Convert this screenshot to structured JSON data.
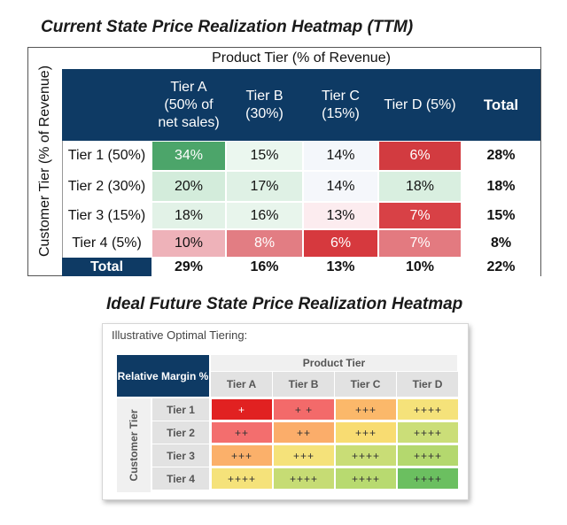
{
  "titles": {
    "current": "Current State Price Realization Heatmap (TTM)",
    "future": "Ideal Future State Price Realization Heatmap"
  },
  "chart_data": [
    {
      "type": "heatmap",
      "title": "Current State Price Realization Heatmap (TTM)",
      "xlabel": "Product Tier (% of Revenue)",
      "ylabel": "Customer Tier (% of Revenue)",
      "columns": [
        "Tier A (50% of net sales)",
        "Tier B (30%)",
        "Tier C (15%)",
        "Tier D (5%)",
        "Total"
      ],
      "rows": [
        "Tier 1 (50%)",
        "Tier 2 (30%)",
        "Tier 3 (15%)",
        "Tier 4 (5%)",
        "Total"
      ],
      "values": [
        [
          "34%",
          "15%",
          "14%",
          "6%",
          "28%"
        ],
        [
          "20%",
          "17%",
          "14%",
          "18%",
          "18%"
        ],
        [
          "18%",
          "16%",
          "13%",
          "7%",
          "15%"
        ],
        [
          "10%",
          "8%",
          "6%",
          "7%",
          "8%"
        ],
        [
          "29%",
          "16%",
          "13%",
          "10%",
          "22%"
        ]
      ],
      "colors": [
        [
          "#4ca56a",
          "#ebf7ef",
          "#f4f7fb",
          "#d23b40"
        ],
        [
          "#d3ecdb",
          "#dff1e5",
          "#f5f7fb",
          "#d9efe0"
        ],
        [
          "#e2f2e7",
          "#e8f5ec",
          "#fcecef",
          "#d84146"
        ],
        [
          "#eeb2b9",
          "#e27d83",
          "#d6393e",
          "#e37a80"
        ]
      ]
    },
    {
      "type": "heatmap",
      "title": "Ideal Future State Price Realization Heatmap",
      "subtitle": "Illustrative Optimal Tiering:",
      "corner_label": "Relative Margin %",
      "xlabel": "Product Tier",
      "ylabel": "Customer Tier",
      "columns": [
        "Tier A",
        "Tier B",
        "Tier C",
        "Tier D"
      ],
      "rows": [
        "Tier 1",
        "Tier 2",
        "Tier 3",
        "Tier 4"
      ],
      "values": [
        [
          "+",
          "+ +",
          "+++",
          "++++"
        ],
        [
          "++",
          "++",
          "+++",
          "++++"
        ],
        [
          "+++",
          "+++",
          "++++",
          "++++"
        ],
        [
          "++++",
          "++++",
          "++++",
          "++++"
        ]
      ],
      "colors": [
        [
          "#e12121",
          "#f36a6a",
          "#fbb86a",
          "#f5e27a"
        ],
        [
          "#f36e6e",
          "#fbad6a",
          "#f8dc72",
          "#cbde78"
        ],
        [
          "#fbb06a",
          "#f5e27a",
          "#c9dd76",
          "#b4d86e"
        ],
        [
          "#f5e27a",
          "#c6dc74",
          "#b8da70",
          "#6bbf60"
        ]
      ]
    }
  ]
}
